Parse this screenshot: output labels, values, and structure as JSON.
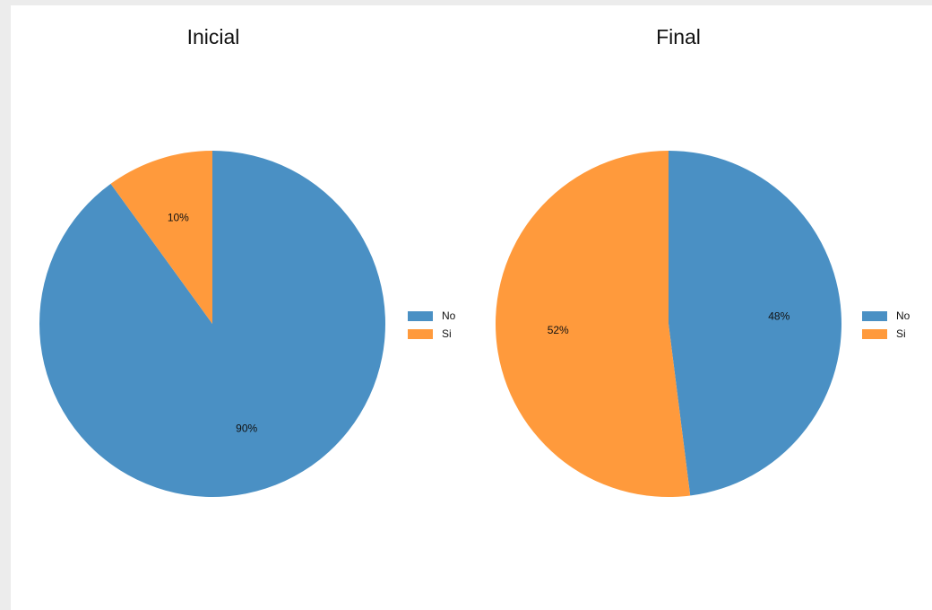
{
  "chart_data": [
    {
      "type": "pie",
      "title": "Inicial",
      "categories": [
        "No",
        "Si"
      ],
      "values": [
        90,
        10
      ],
      "labels": [
        "90%",
        "10%"
      ],
      "colors": [
        "#4a90c4",
        "#ff9a3c"
      ],
      "legend": "right"
    },
    {
      "type": "pie",
      "title": "Final",
      "categories": [
        "No",
        "Si"
      ],
      "values": [
        48,
        52
      ],
      "labels": [
        "48%",
        "52%"
      ],
      "colors": [
        "#4a90c4",
        "#ff9a3c"
      ],
      "legend": "right"
    }
  ]
}
